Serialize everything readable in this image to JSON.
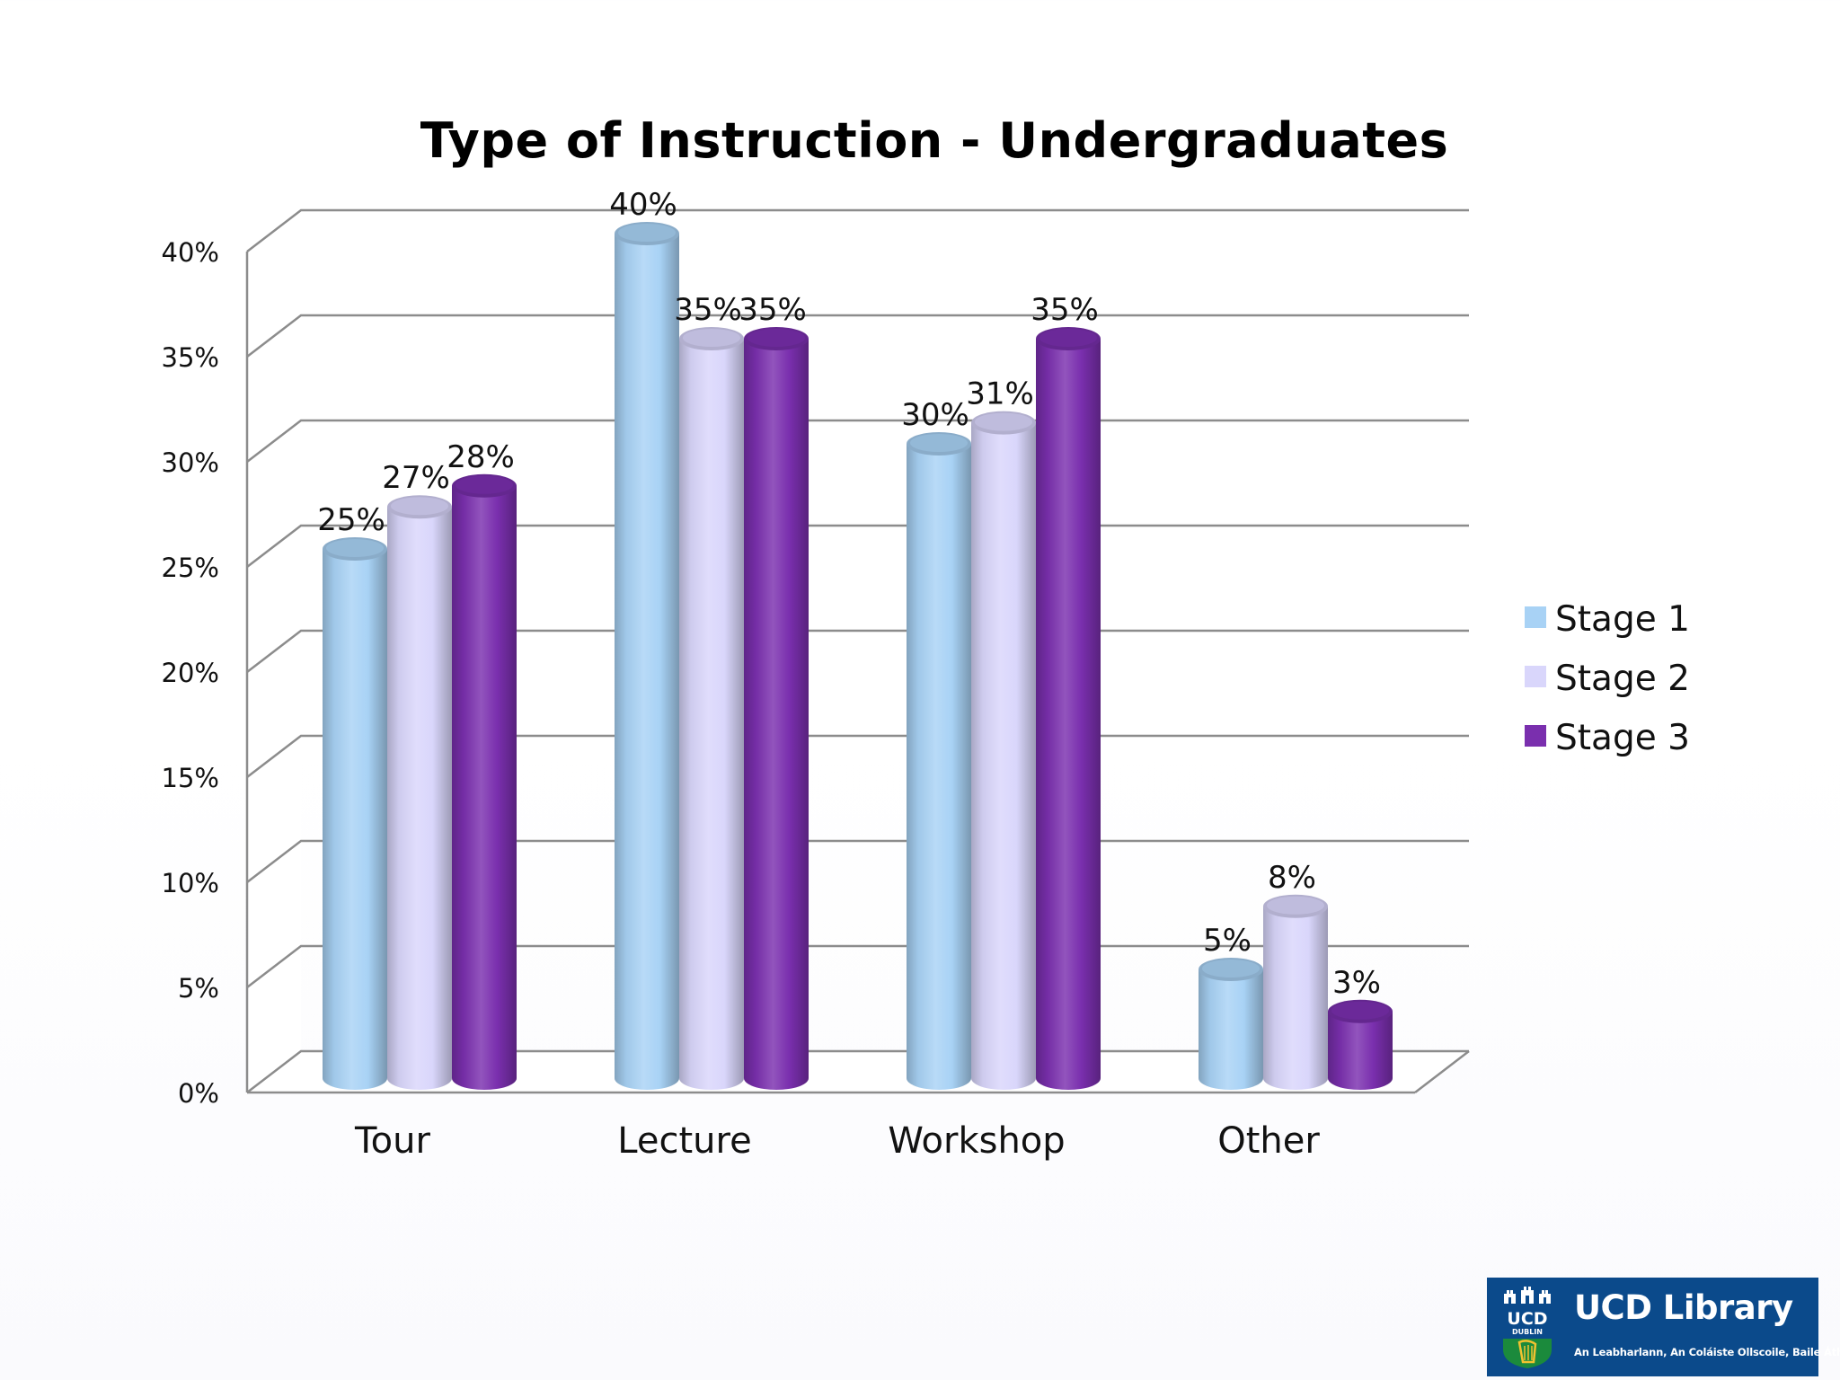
{
  "chart_data": {
    "type": "bar",
    "title": "Type of Instruction - Undergraduates",
    "categories": [
      "Tour",
      "Lecture",
      "Workshop",
      "Other"
    ],
    "series": [
      {
        "name": "Stage 1",
        "values": [
          25,
          40,
          30,
          5
        ],
        "labels": [
          "25%",
          "40%",
          "30%",
          "5%"
        ]
      },
      {
        "name": "Stage 2",
        "values": [
          27,
          35,
          31,
          8
        ],
        "labels": [
          "27%",
          "35%",
          "31%",
          "8%"
        ]
      },
      {
        "name": "Stage 3",
        "values": [
          28,
          35,
          35,
          3
        ],
        "labels": [
          "28%",
          "35%",
          "35%",
          "3%"
        ]
      }
    ],
    "y_ticks": [
      "0%",
      "5%",
      "10%",
      "15%",
      "20%",
      "25%",
      "30%",
      "35%",
      "40%"
    ],
    "ylim": [
      0,
      40
    ],
    "xlabel": "",
    "ylabel": "",
    "grid": true,
    "legend_position": "right",
    "style": "3d-cylinder",
    "colors": {
      "Stage 1": "#a8d2f5",
      "Stage 2": "#d9d6fb",
      "Stage 3": "#7a2fae"
    }
  },
  "logo": {
    "brand": "UCD Library",
    "crest_top": "UCD",
    "crest_bottom": "DUBLIN",
    "tagline": "An Leabharlann, An Coláiste Ollscoile, Baile Átha Cliath"
  }
}
